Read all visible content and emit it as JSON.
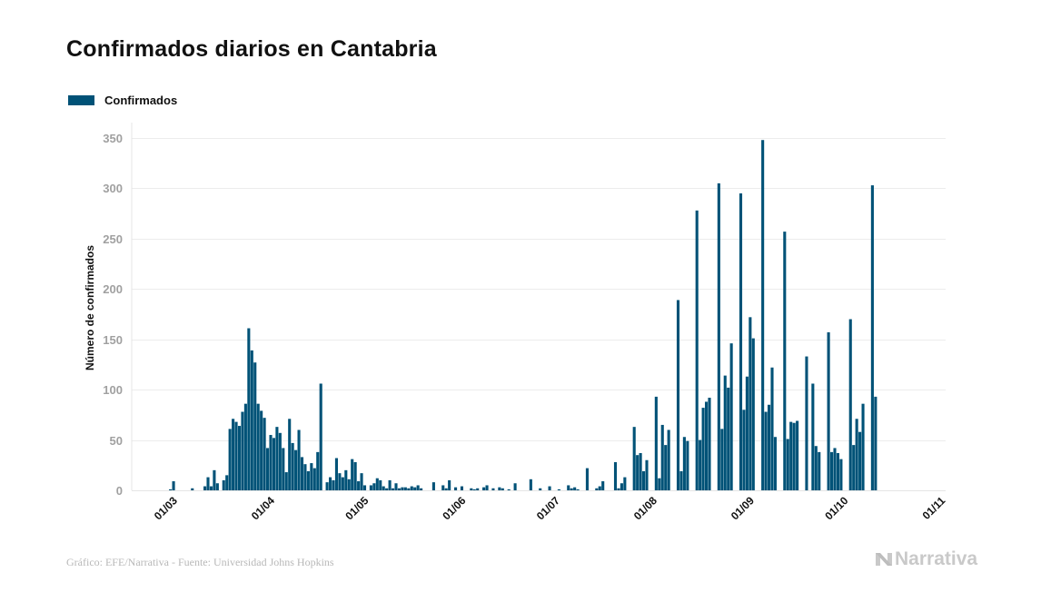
{
  "header": {
    "title": "Confirmados diarios en Cantabria"
  },
  "legend": {
    "label": "Confirmados",
    "color": "#005277"
  },
  "footer": {
    "source": "Gráfico: EFE/Narrativa - Fuente: Universidad Johns Hopkins",
    "brand": "Narrativa"
  },
  "chart_data": {
    "type": "bar",
    "title": "Confirmados diarios en Cantabria",
    "xlabel": "",
    "ylabel": "Número de confirmados",
    "ylim": [
      0,
      350
    ],
    "yticks": [
      0,
      50,
      100,
      150,
      200,
      250,
      300,
      350
    ],
    "xticks": [
      "01/03",
      "01/04",
      "01/05",
      "01/06",
      "01/07",
      "01/08",
      "01/09",
      "01/10",
      "01/11"
    ],
    "xtick_day_offsets": [
      3,
      34,
      64,
      95,
      125,
      156,
      187,
      217,
      248
    ],
    "grid": true,
    "legend_position": "top-left",
    "bar_color": "#005277",
    "start_date": "2020-02-27",
    "series": [
      {
        "name": "Confirmados",
        "values": [
          0,
          1,
          9,
          0,
          0,
          0,
          0,
          0,
          2,
          0,
          0,
          0,
          4,
          13,
          4,
          20,
          7,
          0,
          10,
          15,
          61,
          71,
          68,
          64,
          78,
          86,
          161,
          139,
          127,
          86,
          79,
          72,
          42,
          55,
          52,
          63,
          57,
          42,
          18,
          71,
          47,
          40,
          60,
          33,
          26,
          19,
          27,
          22,
          38,
          106,
          0,
          8,
          13,
          10,
          32,
          17,
          13,
          20,
          11,
          31,
          28,
          9,
          17,
          5,
          0,
          5,
          7,
          12,
          10,
          4,
          2,
          10,
          2,
          7,
          2,
          3,
          3,
          2,
          4,
          3,
          5,
          2,
          0,
          0,
          0,
          8,
          0,
          0,
          5,
          2,
          10,
          0,
          3,
          0,
          4,
          0,
          0,
          2,
          1,
          2,
          0,
          3,
          5,
          0,
          2,
          0,
          3,
          2,
          0,
          1,
          0,
          7,
          0,
          0,
          0,
          0,
          11,
          0,
          0,
          2,
          0,
          0,
          4,
          0,
          0,
          1,
          0,
          0,
          5,
          2,
          3,
          1,
          0,
          0,
          22,
          0,
          0,
          2,
          4,
          9,
          0,
          0,
          0,
          28,
          2,
          7,
          13,
          0,
          0,
          63,
          35,
          37,
          19,
          30,
          0,
          0,
          93,
          12,
          65,
          45,
          60,
          0,
          0,
          189,
          19,
          53,
          49,
          0,
          0,
          278,
          50,
          82,
          88,
          92,
          0,
          0,
          305,
          61,
          114,
          102,
          146,
          0,
          0,
          295,
          80,
          113,
          172,
          151,
          0,
          0,
          348,
          78,
          85,
          122,
          53,
          0,
          0,
          257,
          51,
          68,
          67,
          69,
          0,
          0,
          133,
          0,
          106,
          44,
          38,
          0,
          0,
          157,
          38,
          42,
          37,
          31,
          0,
          0,
          170,
          45,
          71,
          58,
          86,
          0,
          0,
          303,
          93
        ]
      }
    ]
  }
}
